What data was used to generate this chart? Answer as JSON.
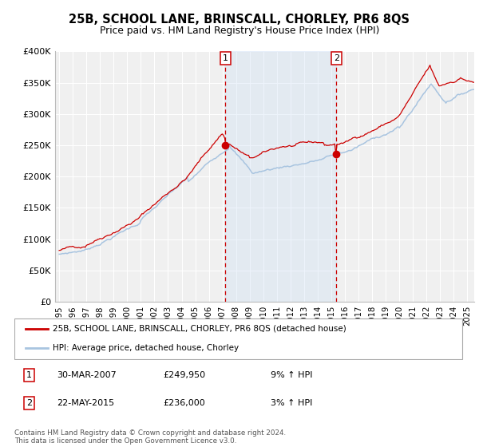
{
  "title": "25B, SCHOOL LANE, BRINSCALL, CHORLEY, PR6 8QS",
  "subtitle": "Price paid vs. HM Land Registry's House Price Index (HPI)",
  "ylim": [
    0,
    400000
  ],
  "yticks": [
    0,
    50000,
    100000,
    150000,
    200000,
    250000,
    300000,
    350000,
    400000
  ],
  "ytick_labels": [
    "£0",
    "£50K",
    "£100K",
    "£150K",
    "£200K",
    "£250K",
    "£300K",
    "£350K",
    "£400K"
  ],
  "xlim_start": 1994.7,
  "xlim_end": 2025.5,
  "hpi_color": "#a8c4e0",
  "price_color": "#cc0000",
  "marker_color": "#cc0000",
  "shade_color": "#ccdff5",
  "plot_bg_color": "#f0f0f0",
  "grid_color": "#ffffff",
  "marker1_x": 2007.21,
  "marker1_y": 249950,
  "marker2_x": 2015.37,
  "marker2_y": 236000,
  "legend_label_red": "25B, SCHOOL LANE, BRINSCALL, CHORLEY, PR6 8QS (detached house)",
  "legend_label_blue": "HPI: Average price, detached house, Chorley",
  "table_row1": [
    "1",
    "30-MAR-2007",
    "£249,950",
    "9% ↑ HPI"
  ],
  "table_row2": [
    "2",
    "22-MAY-2015",
    "£236,000",
    "3% ↑ HPI"
  ],
  "footnote": "Contains HM Land Registry data © Crown copyright and database right 2024.\nThis data is licensed under the Open Government Licence v3.0."
}
